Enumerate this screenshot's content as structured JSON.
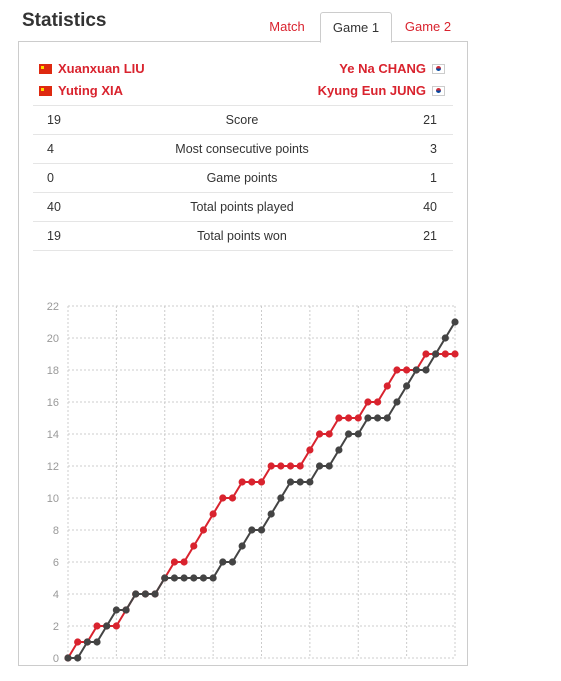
{
  "header": {
    "title": "Statistics"
  },
  "tabs": [
    {
      "label": "Match",
      "active": false
    },
    {
      "label": "Game 1",
      "active": true
    },
    {
      "label": "Game 2",
      "active": false
    }
  ],
  "players": {
    "left": [
      {
        "name": "Xuanxuan LIU",
        "flag": "china-flag-icon"
      },
      {
        "name": "Yuting XIA",
        "flag": "china-flag-icon"
      }
    ],
    "right": [
      {
        "name": "Ye Na CHANG",
        "flag": "korea-flag-icon"
      },
      {
        "name": "Kyung Eun JUNG",
        "flag": "korea-flag-icon"
      }
    ]
  },
  "stats": [
    {
      "left": "19",
      "label": "Score",
      "right": "21"
    },
    {
      "left": "4",
      "label": "Most consecutive points",
      "right": "3"
    },
    {
      "left": "0",
      "label": "Game points",
      "right": "1"
    },
    {
      "left": "40",
      "label": "Total points played",
      "right": "40"
    },
    {
      "left": "19",
      "label": "Total points won",
      "right": "21"
    }
  ],
  "colors": {
    "accent": "#d9232e",
    "opponent": "#444444",
    "grid": "#cccccc"
  },
  "chart_data": {
    "type": "line",
    "x": [
      0,
      1,
      2,
      3,
      4,
      5,
      6,
      7,
      8,
      9,
      10,
      11,
      12,
      13,
      14,
      15,
      16,
      17,
      18,
      19,
      20,
      21,
      22,
      23,
      24,
      25,
      26,
      27,
      28,
      29,
      30,
      31,
      32,
      33,
      34,
      35,
      36,
      37,
      38,
      39,
      40
    ],
    "series": [
      {
        "color": "#d9232e",
        "values": [
          0,
          1,
          1,
          2,
          2,
          2,
          3,
          4,
          4,
          4,
          5,
          6,
          6,
          7,
          8,
          9,
          10,
          10,
          11,
          11,
          11,
          12,
          12,
          12,
          12,
          13,
          14,
          14,
          15,
          15,
          15,
          16,
          16,
          17,
          18,
          18,
          18,
          19,
          19,
          19,
          19
        ]
      },
      {
        "color": "#444444",
        "values": [
          0,
          0,
          1,
          1,
          2,
          3,
          3,
          4,
          4,
          4,
          5,
          5,
          5,
          5,
          5,
          5,
          6,
          6,
          7,
          8,
          8,
          9,
          10,
          11,
          11,
          11,
          12,
          12,
          13,
          14,
          14,
          15,
          15,
          15,
          16,
          17,
          18,
          18,
          19,
          20,
          21
        ]
      }
    ],
    "yticks": [
      0,
      2,
      4,
      6,
      8,
      10,
      12,
      14,
      16,
      18,
      20,
      22
    ],
    "ylim": [
      0,
      22
    ],
    "xlim": [
      0,
      40
    ],
    "grid": true
  }
}
